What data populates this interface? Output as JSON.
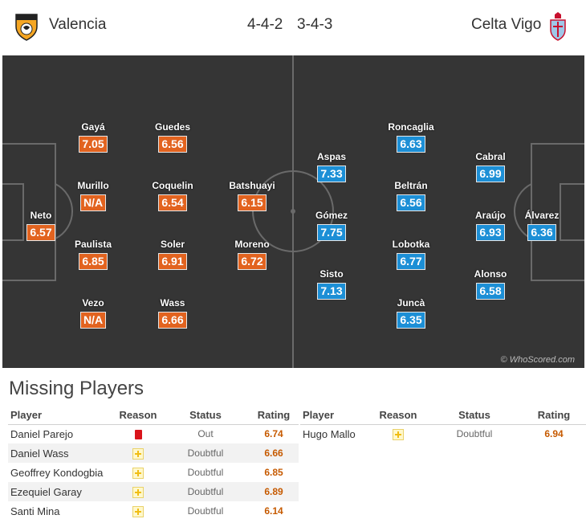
{
  "match": {
    "home": {
      "name": "Valencia",
      "formation": "4-4-2"
    },
    "away": {
      "name": "Celta Vigo",
      "formation": "3-4-3"
    }
  },
  "pitch": {
    "watermark": "© WhoScored.com"
  },
  "colors": {
    "home_rating": "#e2631f",
    "away_rating": "#1c8fd6",
    "pitch": "#353535"
  },
  "home_players": [
    {
      "name": "Neto",
      "rating": "6.57"
    },
    {
      "name": "Gayá",
      "rating": "7.05"
    },
    {
      "name": "Murillo",
      "rating": "N/A"
    },
    {
      "name": "Paulista",
      "rating": "6.85"
    },
    {
      "name": "Vezo",
      "rating": "N/A"
    },
    {
      "name": "Guedes",
      "rating": "6.56"
    },
    {
      "name": "Coquelin",
      "rating": "6.54"
    },
    {
      "name": "Soler",
      "rating": "6.91"
    },
    {
      "name": "Wass",
      "rating": "6.66"
    },
    {
      "name": "Batshuayi",
      "rating": "6.15"
    },
    {
      "name": "Moreno",
      "rating": "6.72"
    }
  ],
  "away_players": [
    {
      "name": "Aspas",
      "rating": "7.33"
    },
    {
      "name": "Gómez",
      "rating": "7.75"
    },
    {
      "name": "Sisto",
      "rating": "7.13"
    },
    {
      "name": "Roncaglia",
      "rating": "6.63"
    },
    {
      "name": "Beltrán",
      "rating": "6.56"
    },
    {
      "name": "Lobotka",
      "rating": "6.77"
    },
    {
      "name": "Juncà",
      "rating": "6.35"
    },
    {
      "name": "Cabral",
      "rating": "6.99"
    },
    {
      "name": "Araújo",
      "rating": "6.93"
    },
    {
      "name": "Alonso",
      "rating": "6.58"
    },
    {
      "name": "Álvarez",
      "rating": "6.36"
    }
  ],
  "missing": {
    "title": "Missing Players",
    "headers": {
      "player": "Player",
      "reason": "Reason",
      "status": "Status",
      "rating": "Rating"
    },
    "home": [
      {
        "player": "Daniel Parejo",
        "reason": "red-card-icon",
        "status": "Out",
        "rating": "6.74"
      },
      {
        "player": "Daniel Wass",
        "reason": "injury-icon",
        "status": "Doubtful",
        "rating": "6.66"
      },
      {
        "player": "Geoffrey Kondogbia",
        "reason": "injury-icon",
        "status": "Doubtful",
        "rating": "6.85"
      },
      {
        "player": "Ezequiel Garay",
        "reason": "injury-icon",
        "status": "Doubtful",
        "rating": "6.89"
      },
      {
        "player": "Santi Mina",
        "reason": "injury-icon",
        "status": "Doubtful",
        "rating": "6.14"
      }
    ],
    "away": [
      {
        "player": "Hugo Mallo",
        "reason": "injury-icon",
        "status": "Doubtful",
        "rating": "6.94"
      }
    ]
  }
}
